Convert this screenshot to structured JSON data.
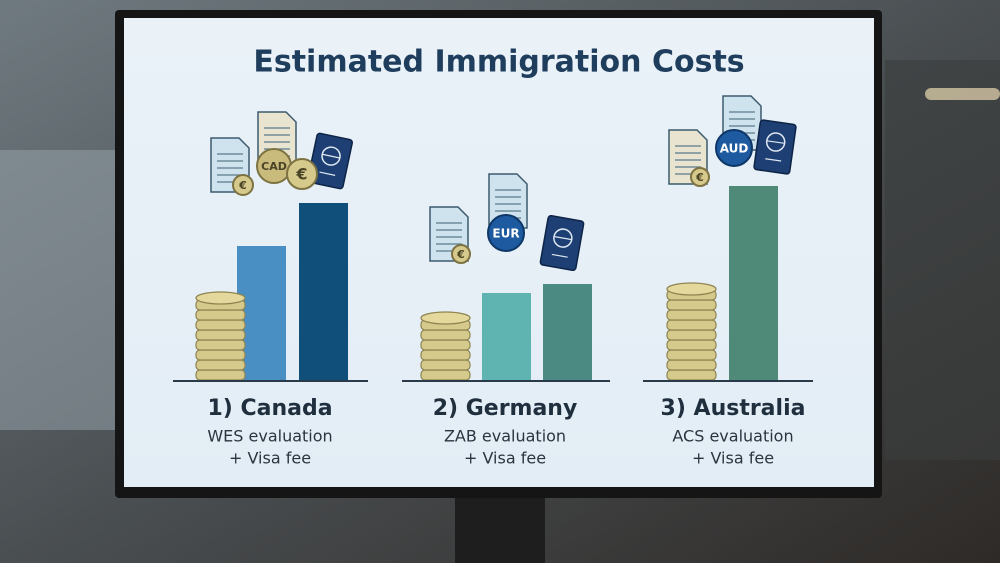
{
  "header": {
    "title": "Estimated Immigration Costs"
  },
  "groups": [
    {
      "label": "1) Canada",
      "lines": [
        "WES evaluation",
        "+ Visa fee"
      ],
      "currency": "CAD",
      "symbol": "€"
    },
    {
      "label": "2) Germany",
      "lines": [
        "ZAB evaluation",
        "+ Visa fee"
      ],
      "currency": "EUR",
      "symbol": "€"
    },
    {
      "label": "3) Australia",
      "lines": [
        "ACS evaluation",
        "+ Visa fee"
      ],
      "currency": "AUD",
      "symbol": "€"
    }
  ]
}
